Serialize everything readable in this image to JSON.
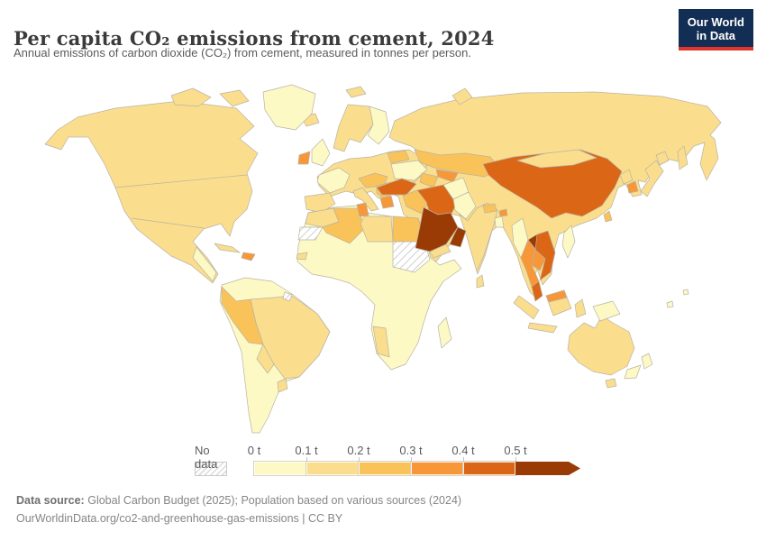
{
  "header": {
    "title": "Per capita CO₂ emissions from cement, 2024",
    "subtitle": "Annual emissions of carbon dioxide (CO₂) from cement, measured in tonnes per person."
  },
  "logo": {
    "line1": "Our World",
    "line2": "in Data",
    "bg_color": "#132E54",
    "accent_color": "#E0352A"
  },
  "legend": {
    "no_data_label": "No data",
    "bins": [
      {
        "label": "0 t",
        "color": "#FCF9C5"
      },
      {
        "label": "0.1 t",
        "color": "#FADE8D"
      },
      {
        "label": "0.2 t",
        "color": "#FAC359"
      },
      {
        "label": "0.3 t",
        "color": "#F79738"
      },
      {
        "label": "0.4 t",
        "color": "#DB6616"
      },
      {
        "label": "0.5 t",
        "color": "#9A3A05"
      }
    ]
  },
  "footer": {
    "data_source_label": "Data source:",
    "data_source": "Global Carbon Budget (2025); Population based on various sources (2024)",
    "link_line": "OurWorldinData.org/co2-and-greenhouse-gas-emissions | CC BY"
  },
  "chart_data": {
    "type": "choropleth",
    "title": "Per capita CO₂ emissions from cement, 2024",
    "unit": "tonnes per person",
    "year": "2024",
    "bin_edges_t": [
      0,
      0.1,
      0.2,
      0.3,
      0.4,
      0.5
    ],
    "bins": [
      {
        "label": "0 t",
        "color": "#FCF9C5"
      },
      {
        "label": "0.1 t",
        "color": "#FADE8D"
      },
      {
        "label": "0.2 t",
        "color": "#FAC359"
      },
      {
        "label": "0.3 t",
        "color": "#F79738"
      },
      {
        "label": "0.4 t",
        "color": "#DB6616"
      },
      {
        "label": "0.5 t",
        "color": "#9A3A05"
      }
    ],
    "regions": {
      "north-america": 1,
      "arctic-islands": 1,
      "greenland": 0,
      "central-america": 0,
      "cuba": 1,
      "dominican-republic": 3,
      "south-america": 0,
      "french-guiana": "nodata",
      "brazil": 1,
      "peru-ecuador": 2,
      "bolivia": 1,
      "uruguay": 1,
      "europe-mainland": 1,
      "scandinavia": 1,
      "finland": 0,
      "iceland": 1,
      "uk": 0,
      "ireland": 3,
      "france": 0,
      "iberia": 1,
      "italy": 1,
      "central-europe": 2,
      "balkans": 2,
      "greece": 3,
      "ukraine": 0,
      "belarus": 2,
      "asia": 1,
      "svalbard": 1,
      "novaya-zemlya": 1,
      "sakhalin": 1,
      "kazakhstan": 2,
      "uzbekistan": 3,
      "turkmenistan": 2,
      "turkey": 4,
      "syria-iraq": 2,
      "iran": 4,
      "afghanistan": 0,
      "pakistan": 0,
      "india": 1,
      "nepal": 2,
      "bhutan": 3,
      "bangladesh": 0,
      "sri-lanka": 1,
      "saudi-arabia": 5,
      "yemen": 1,
      "oman-uae": 5,
      "china": 4,
      "mongolia": 1,
      "north-korea": 1,
      "south-korea": 3,
      "japan": 1,
      "taiwan": 2,
      "myanmar": 0,
      "thailand": 3,
      "laos": 5,
      "vietnam": 4,
      "cambodia": 3,
      "malaysia-peninsula": 4,
      "malaysia-borneo": 3,
      "sumatra": 1,
      "java": 1,
      "borneo": 1,
      "sulawesi": 1,
      "philippines": 0,
      "papua-new-guinea": 0,
      "pacific-islands": 0,
      "africa": 0,
      "morocco": 1,
      "western-sahara": "nodata",
      "algeria": 2,
      "tunisia": 3,
      "libya": 1,
      "egypt": 2,
      "sudan": "nodata",
      "senegal": 1,
      "namibia": 1,
      "madagascar": 0,
      "australia": 1,
      "tasmania": 1,
      "new-zealand": 0
    }
  }
}
